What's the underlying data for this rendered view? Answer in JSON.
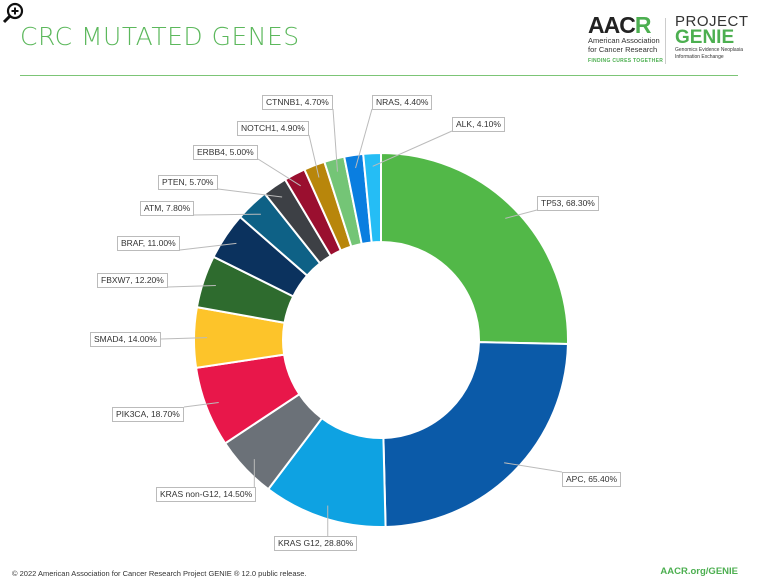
{
  "header": {
    "title": "CRC MUTATED GENES",
    "aacr_logo": {
      "word_a": "AAC",
      "word_b": "R",
      "line1": "American Association",
      "line2": "for Cancer Research",
      "tagline": "FINDING CURES TOGETHER"
    },
    "genie_logo": {
      "line1": "PROJECT",
      "line2": "GENIE",
      "line3": "Genomics Evidence Neoplasia",
      "line4": "Information Exchange"
    }
  },
  "footer": {
    "copyright": "© 2022 American Association for Cancer Research Project GENIE ® 12.0 public release.",
    "link": "AACR.org/GENIE"
  },
  "chart_data": {
    "type": "pie",
    "variant": "donut",
    "title": "CRC MUTATED GENES",
    "unit": "%",
    "slices": [
      {
        "name": "TP53",
        "value": 68.3,
        "label": "TP53, 68.30%",
        "color": "#52b848"
      },
      {
        "name": "APC",
        "value": 65.4,
        "label": "APC, 65.40%",
        "color": "#0b5aa8"
      },
      {
        "name": "KRAS G12",
        "value": 28.8,
        "label": "KRAS G12, 28.80%",
        "color": "#0ea2e2"
      },
      {
        "name": "KRAS non-G12",
        "value": 14.5,
        "label": "KRAS non-G12, 14.50%",
        "color": "#6b7178"
      },
      {
        "name": "PIK3CA",
        "value": 18.7,
        "label": "PIK3CA, 18.70%",
        "color": "#e8174a"
      },
      {
        "name": "SMAD4",
        "value": 14.0,
        "label": "SMAD4, 14.00%",
        "color": "#fdc42a"
      },
      {
        "name": "FBXW7",
        "value": 12.2,
        "label": "FBXW7, 12.20%",
        "color": "#2e6b2e"
      },
      {
        "name": "BRAF",
        "value": 11.0,
        "label": "BRAF, 11.00%",
        "color": "#0b325e"
      },
      {
        "name": "ATM",
        "value": 7.8,
        "label": "ATM, 7.80%",
        "color": "#0e6186"
      },
      {
        "name": "PTEN",
        "value": 5.7,
        "label": "PTEN, 5.70%",
        "color": "#3d4045"
      },
      {
        "name": "ERBB4",
        "value": 5.0,
        "label": "ERBB4, 5.00%",
        "color": "#9a0f2f"
      },
      {
        "name": "NOTCH1",
        "value": 4.9,
        "label": "NOTCH1, 4.90%",
        "color": "#b8860b"
      },
      {
        "name": "CTNNB1",
        "value": 4.7,
        "label": "CTNNB1, 4.70%",
        "color": "#74c576"
      },
      {
        "name": "NRAS",
        "value": 4.4,
        "label": "NRAS, 4.40%",
        "color": "#0a7ee0"
      },
      {
        "name": "ALK",
        "value": 4.1,
        "label": "ALK, 4.10%",
        "color": "#25bdf5"
      }
    ]
  }
}
